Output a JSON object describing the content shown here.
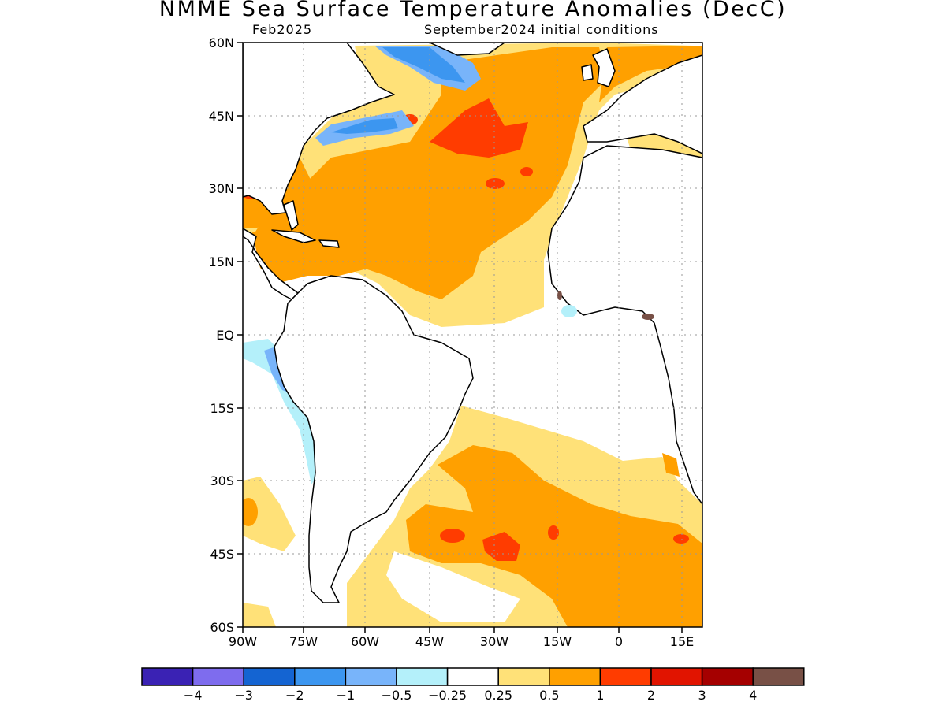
{
  "title": "NMME Sea Surface Temperature Anomalies (DecC)",
  "subtitle_left": "Feb2025",
  "subtitle_right": "September2024 initial conditions",
  "lat_labels": [
    "60N",
    "45N",
    "30N",
    "15N",
    "EQ",
    "15S",
    "30S",
    "45S",
    "60S"
  ],
  "lon_labels": [
    "90W",
    "75W",
    "60W",
    "45W",
    "30W",
    "15W",
    "0",
    "15E"
  ],
  "map_extent": {
    "lon_min": -90,
    "lon_max": 15,
    "lat_min": -60,
    "lat_max": 60
  },
  "colorbar": {
    "colors": [
      "#3a22b4",
      "#7e6cee",
      "#1464d2",
      "#3c96f0",
      "#78b4fa",
      "#b4f0fa",
      "#ffffff",
      "#ffe178",
      "#ffa000",
      "#ff3c00",
      "#e11400",
      "#a50000",
      "#785046"
    ],
    "labels": [
      "−4",
      "−3",
      "−2",
      "−1",
      "−0.5",
      "−0.25",
      "0.25",
      "0.5",
      "1",
      "2",
      "3",
      "4"
    ]
  },
  "colors": {
    "land_outline": "#000000",
    "grid": "#999999"
  }
}
